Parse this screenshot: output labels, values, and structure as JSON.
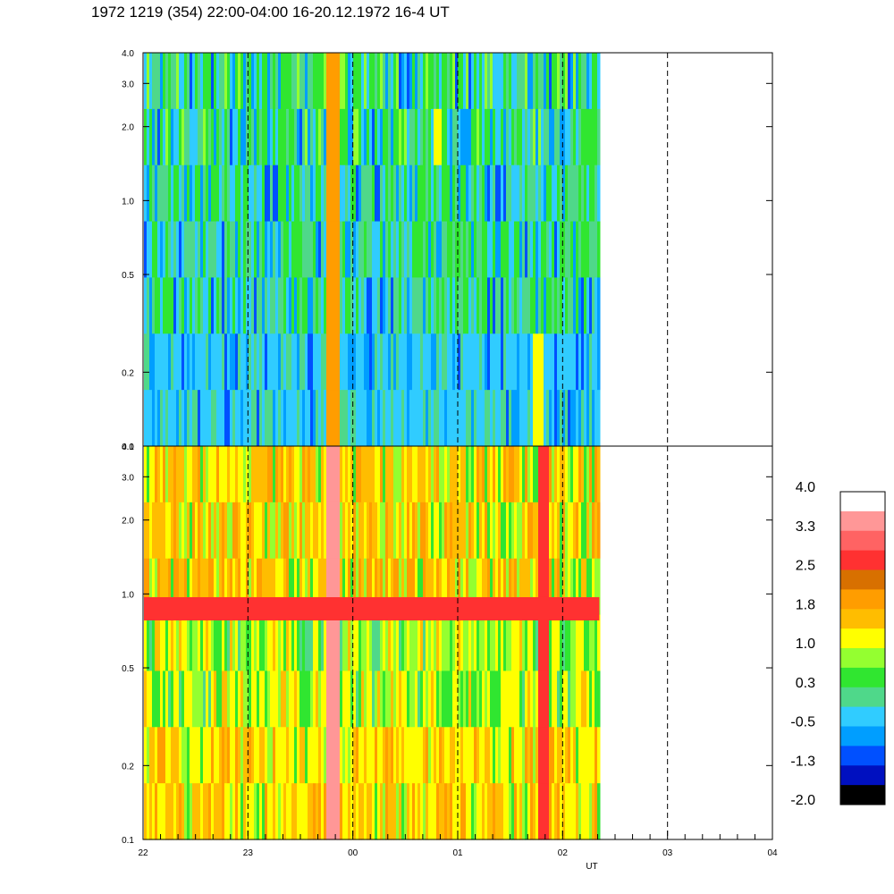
{
  "title": "1972 1219 (354) 22:00-04:00 16-20.12.1972  16-4 UT",
  "chart_data": {
    "type": "heatmap",
    "title": "1972 1219 (354) 22:00-04:00 16-20.12.1972  16-4 UT",
    "xlabel": "UT",
    "x_ticks": [
      "22",
      "23",
      "00",
      "01",
      "02",
      "03",
      "04"
    ],
    "x_range_hours": [
      22,
      28
    ],
    "data_end_hour": 26.35,
    "y_scale": "log",
    "y_range": [
      0.1,
      4.0
    ],
    "y_ticks": [
      "0.1",
      "0.2",
      "0.5",
      "1.0",
      "2.0",
      "3.0",
      "4.0"
    ],
    "panels": [
      {
        "name": "upper",
        "dominant_levels": [
          "-0.5",
          "0.3",
          "-1.3"
        ],
        "features": [
          {
            "type": "vertical_streak",
            "hour": 23.8,
            "level": "1.8"
          },
          {
            "type": "patch",
            "hour": 24.8,
            "y_range": [
              1.2,
              2.2
            ],
            "level": "1.0"
          },
          {
            "type": "vertical_streak",
            "hour": 25.75,
            "level": "1.0",
            "y_range": [
              0.1,
              0.3
            ]
          }
        ]
      },
      {
        "name": "lower",
        "dominant_levels": [
          "1.0",
          "1.8",
          "0.3"
        ],
        "features": [
          {
            "type": "horizontal_band",
            "y_range": [
              0.78,
              0.97
            ],
            "level": "2.5"
          },
          {
            "type": "vertical_streak",
            "hour": 23.8,
            "level": "3.3"
          },
          {
            "type": "vertical_streak",
            "hour": 25.8,
            "level": "2.5"
          }
        ]
      }
    ],
    "colorbar": {
      "labels": [
        "4.0",
        "3.3",
        "2.5",
        "1.8",
        "1.0",
        "0.3",
        "-0.5",
        "-1.3",
        "-2.0"
      ],
      "colors": [
        "#ffffff",
        "#ff9797",
        "#ff6363",
        "#ff3131",
        "#d87000",
        "#ff9d00",
        "#ffbd00",
        "#ffff00",
        "#94ff30",
        "#30e630",
        "#4fd88a",
        "#30ccff",
        "#009eff",
        "#0050ff",
        "#0010c0",
        "#000000"
      ]
    }
  }
}
